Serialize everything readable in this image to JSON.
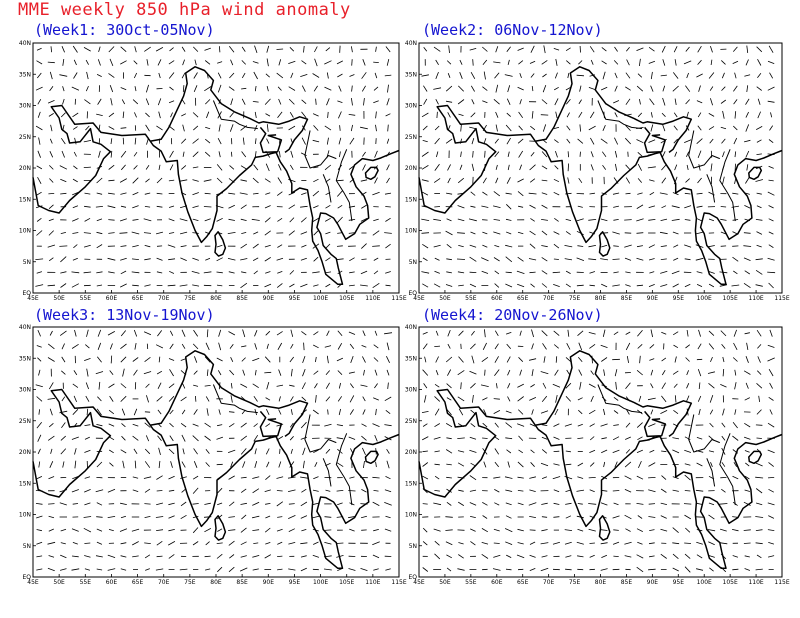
{
  "title": "MME weekly 850 hPa wind anomaly",
  "panels": [
    {
      "id": "week1",
      "label": "(Week1: 30Oct-05Nov)"
    },
    {
      "id": "week2",
      "label": "(Week2: 06Nov-12Nov)"
    },
    {
      "id": "week3",
      "label": "(Week3: 13Nov-19Nov)"
    },
    {
      "id": "week4",
      "label": "(Week4: 20Nov-26Nov)"
    }
  ],
  "axes": {
    "lon_range": [
      45,
      115
    ],
    "lat_range": [
      0,
      40
    ],
    "lon_ticks": [
      "45E",
      "50E",
      "55E",
      "60E",
      "65E",
      "70E",
      "75E",
      "80E",
      "85E",
      "90E",
      "95E",
      "100E",
      "105E",
      "110E",
      "115E"
    ],
    "lat_ticks": [
      "EQ",
      "5N",
      "10N",
      "15N",
      "20N",
      "25N",
      "30N",
      "35N",
      "40N"
    ]
  },
  "map_region": "Indian subcontinent and surrounding seas",
  "vector_type": "wind anomaly vectors (no arrowheads)",
  "colors": {
    "title": "#e8202a",
    "panel_label": "#1515d0",
    "lines": "#000000"
  }
}
